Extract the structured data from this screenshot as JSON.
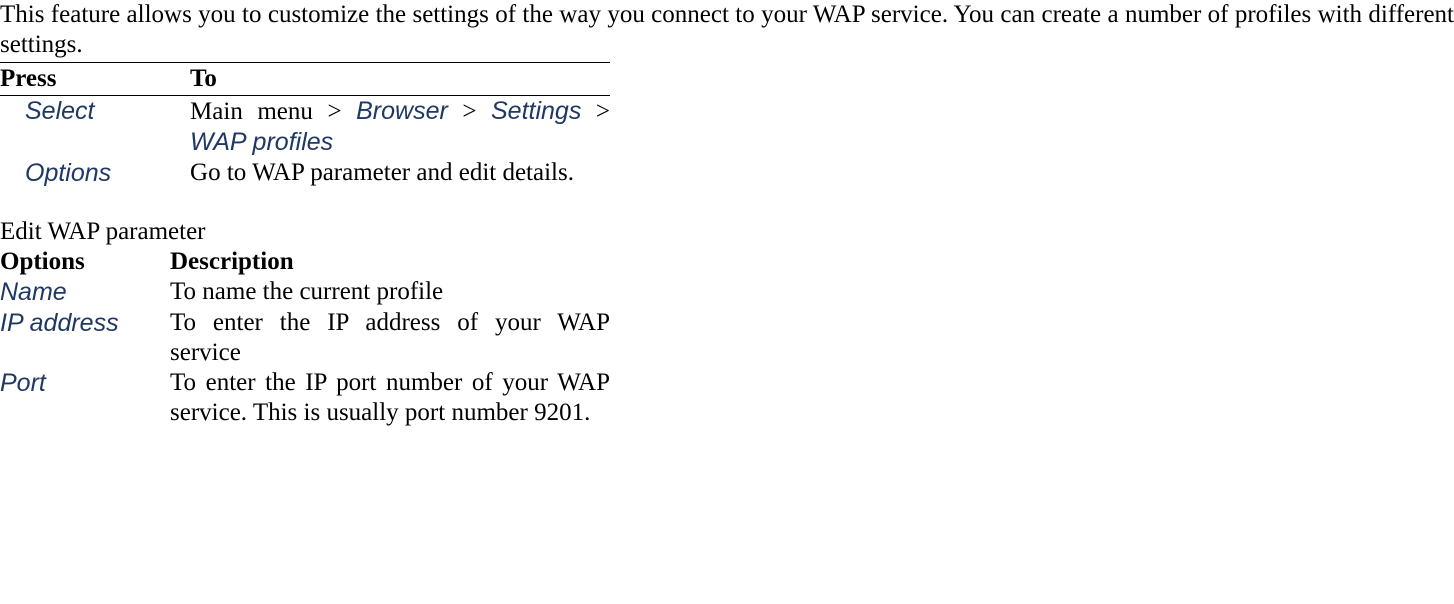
{
  "intro": "This feature allows you to customize the settings of the way you connect to your WAP service. You can create a number of profiles with different settings.",
  "table1": {
    "header": {
      "col1": "Press",
      "col2": "To"
    },
    "rows": [
      {
        "press": "Select",
        "to_prefix": "Main menu > ",
        "to_links": [
          "Browser",
          "Settings",
          "WAP profiles"
        ],
        "sep": " > "
      },
      {
        "press": "Options",
        "to_plain": "Go to WAP parameter and edit details."
      }
    ]
  },
  "section2_title": "Edit WAP parameter",
  "table2": {
    "header": {
      "col1": "Options",
      "col2": "Description"
    },
    "rows": [
      {
        "opt": "Name",
        "desc": "To name the current profile"
      },
      {
        "opt": "IP address",
        "desc": "To enter the IP address of your WAP service"
      },
      {
        "opt": "Port",
        "desc": "To enter the IP port number of your WAP service. This is usually port number 9201."
      }
    ]
  }
}
